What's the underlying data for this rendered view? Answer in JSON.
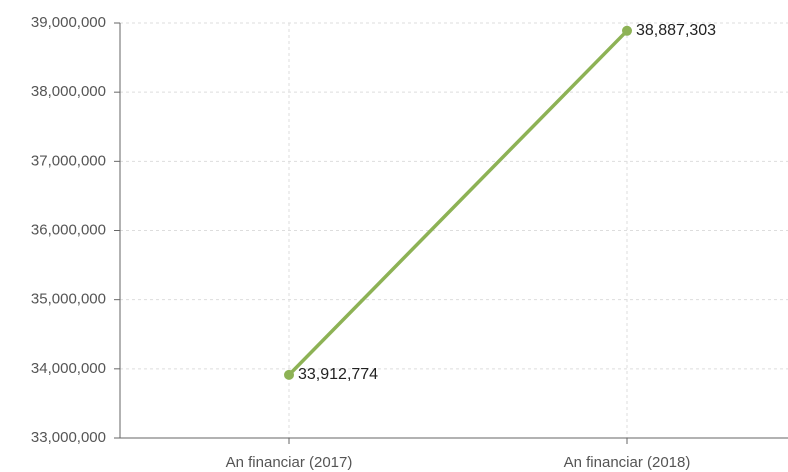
{
  "chart_data": {
    "type": "line",
    "categories": [
      "An financiar (2017)",
      "An financiar (2018)"
    ],
    "series": [
      {
        "color": "#8db255",
        "values": [
          33912774,
          38887303
        ],
        "value_labels": [
          "33,912,774",
          "38,887,303"
        ]
      }
    ],
    "ylim": [
      33000000,
      39000000
    ],
    "yticks": [
      {
        "value": 33000000,
        "label": "33,000,000"
      },
      {
        "value": 34000000,
        "label": "34,000,000"
      },
      {
        "value": 35000000,
        "label": "35,000,000"
      },
      {
        "value": 36000000,
        "label": "36,000,000"
      },
      {
        "value": 37000000,
        "label": "37,000,000"
      },
      {
        "value": 38000000,
        "label": "38,000,000"
      },
      {
        "value": 39000000,
        "label": "39,000,000"
      }
    ],
    "grid": true
  }
}
